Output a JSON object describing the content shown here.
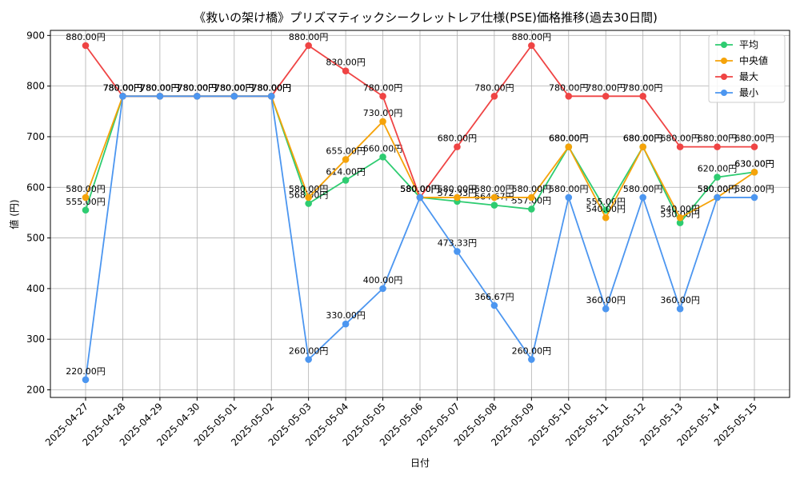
{
  "chart_data": {
    "type": "line",
    "title": "《救いの架け橋》プリズマティックシークレットレア仕様(PSE)価格推移(過去30日間)",
    "xlabel": "日付",
    "ylabel": "値 (円)",
    "ylim": [
      185,
      910
    ],
    "yticks": [
      200,
      300,
      400,
      500,
      600,
      700,
      800,
      900
    ],
    "grid": true,
    "legend_position": "top-right",
    "value_suffix": "円",
    "categories": [
      "2025-04-27",
      "2025-04-28",
      "2025-04-29",
      "2025-04-30",
      "2025-05-01",
      "2025-05-02",
      "2025-05-03",
      "2025-05-04",
      "2025-05-05",
      "2025-05-06",
      "2025-05-07",
      "2025-05-08",
      "2025-05-09",
      "2025-05-10",
      "2025-05-11",
      "2025-05-12",
      "2025-05-13",
      "2025-05-14",
      "2025-05-15"
    ],
    "series": [
      {
        "name": "平均",
        "color": "#2ecc71",
        "values": [
          555,
          780,
          780,
          780,
          780,
          780,
          568,
          614,
          660,
          580,
          572.33,
          564.67,
          557,
          680,
          555,
          680,
          530,
          620,
          630
        ],
        "labels": [
          true,
          true,
          true,
          true,
          true,
          true,
          true,
          true,
          true,
          true,
          true,
          true,
          true,
          true,
          true,
          true,
          true,
          true,
          true
        ]
      },
      {
        "name": "中央値",
        "color": "#f5a30a",
        "values": [
          580,
          780,
          780,
          780,
          780,
          780,
          580,
          655,
          730,
          580,
          580,
          580,
          580,
          680,
          540,
          680,
          540,
          580,
          630
        ],
        "labels": [
          true,
          true,
          true,
          true,
          true,
          true,
          true,
          true,
          true,
          true,
          true,
          true,
          true,
          true,
          true,
          true,
          true,
          true,
          true
        ]
      },
      {
        "name": "最大",
        "color": "#ef4444",
        "values": [
          880,
          780,
          780,
          780,
          780,
          780,
          880,
          830,
          780,
          580,
          680,
          780,
          880,
          780,
          780,
          780,
          680,
          680,
          680
        ],
        "labels": [
          true,
          true,
          true,
          true,
          true,
          true,
          true,
          true,
          true,
          true,
          true,
          true,
          true,
          true,
          true,
          true,
          true,
          true,
          true
        ]
      },
      {
        "name": "最小",
        "color": "#4c96f0",
        "values": [
          220,
          780,
          780,
          780,
          780,
          780,
          260,
          330,
          400,
          580,
          473.33,
          366.67,
          260,
          580,
          360,
          580,
          360,
          580,
          580
        ],
        "labels": [
          true,
          true,
          true,
          true,
          true,
          true,
          true,
          true,
          true,
          true,
          true,
          true,
          true,
          true,
          true,
          true,
          true,
          true,
          true
        ]
      }
    ]
  }
}
